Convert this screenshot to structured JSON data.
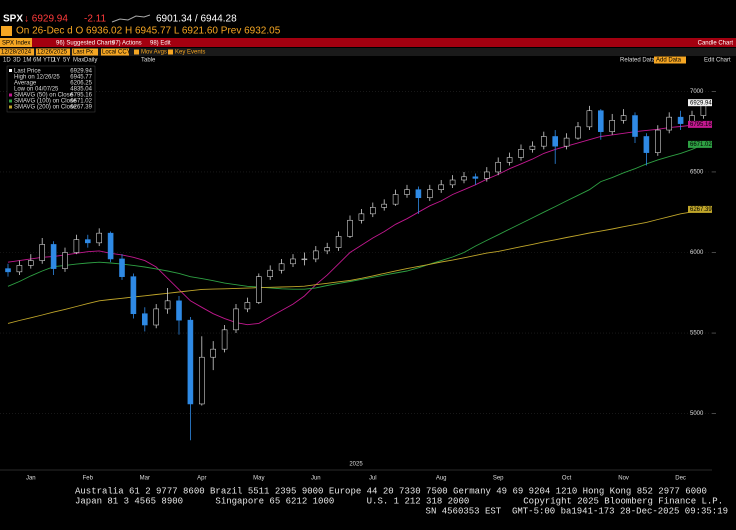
{
  "header": {
    "ticker": "SPX",
    "last": "↓ 6929.94",
    "change": "-2.11",
    "bid_ask": "6901.34 / 6944.28",
    "session": "On 26-Dec d O 6936.02 H 6945.77 L 6921.60 Prev 6932.05"
  },
  "menu": {
    "security": "SPX Index",
    "items": [
      "96) Suggested Charts",
      "97) Actions",
      "98) Edit"
    ],
    "view": "Candle Chart"
  },
  "toolbar": {
    "start": "12/28/2024",
    "end": "12/26/2025",
    "field": "Last Px",
    "currency": "Local CCY",
    "studies": [
      "Mov Avgs",
      "Key Events"
    ],
    "ranges": [
      "1D",
      "3D",
      "1M",
      "6M",
      "YTD",
      "1Y",
      "5Y",
      "Max"
    ],
    "frequency": "Daily",
    "table": "Table",
    "related": "Related Data",
    "add": "Add Data",
    "edit": "Edit Chart"
  },
  "chart_data": {
    "type": "candlestick",
    "xlabel": "2025",
    "categories": [
      null,
      null,
      "Jan",
      null,
      null,
      null,
      null,
      "Feb",
      null,
      null,
      null,
      null,
      "Mar",
      null,
      null,
      null,
      null,
      "Apr",
      null,
      null,
      null,
      null,
      "May",
      null,
      null,
      null,
      null,
      "Jun",
      null,
      null,
      null,
      null,
      "Jul",
      null,
      null,
      null,
      null,
      null,
      "Aug",
      null,
      null,
      null,
      null,
      "Sep",
      null,
      null,
      null,
      null,
      null,
      "Oct",
      null,
      null,
      null,
      null,
      "Nov",
      null,
      null,
      null,
      null,
      "Dec",
      null,
      null
    ],
    "open": [
      5900,
      5880,
      5920,
      5950,
      6050,
      5900,
      6000,
      6080,
      6060,
      6120,
      5960,
      5850,
      5620,
      5550,
      5650,
      5700,
      5580,
      5060,
      5350,
      5400,
      5520,
      5650,
      5690,
      5850,
      5890,
      5930,
      5960,
      5960,
      6010,
      6030,
      6100,
      6200,
      6240,
      6280,
      6300,
      6360,
      6390,
      6340,
      6390,
      6420,
      6450,
      6470,
      6460,
      6500,
      6560,
      6590,
      6640,
      6660,
      6720,
      6660,
      6710,
      6780,
      6880,
      6750,
      6820,
      6850,
      6720,
      6620,
      6760,
      6840,
      6800,
      6850
    ],
    "high": [
      5930,
      5950,
      5990,
      6090,
      6070,
      6030,
      6110,
      6110,
      6150,
      6130,
      5990,
      5870,
      5660,
      5680,
      5780,
      5730,
      5600,
      5480,
      5450,
      5550,
      5680,
      5720,
      5870,
      5920,
      5960,
      5990,
      6000,
      6040,
      6060,
      6130,
      6230,
      6270,
      6310,
      6330,
      6390,
      6420,
      6410,
      6420,
      6450,
      6480,
      6500,
      6490,
      6530,
      6590,
      6620,
      6670,
      6690,
      6750,
      6760,
      6740,
      6810,
      6910,
      6890,
      6860,
      6890,
      6870,
      6740,
      6790,
      6870,
      6880,
      6880,
      6945.77
    ],
    "low": [
      5850,
      5860,
      5900,
      5930,
      5860,
      5880,
      5990,
      6030,
      6040,
      5940,
      5830,
      5590,
      5510,
      5530,
      5620,
      5490,
      4835.04,
      5050,
      5270,
      5380,
      5500,
      5630,
      5680,
      5830,
      5870,
      5910,
      5920,
      5940,
      5990,
      6010,
      6090,
      6180,
      6220,
      6260,
      6290,
      6340,
      6240,
      6320,
      6370,
      6400,
      6430,
      6420,
      6440,
      6480,
      6540,
      6570,
      6620,
      6640,
      6550,
      6640,
      6700,
      6760,
      6700,
      6730,
      6800,
      6680,
      6540,
      6600,
      6740,
      6760,
      6780,
      6830
    ],
    "close": [
      5880,
      5920,
      5950,
      6050,
      5900,
      6000,
      6080,
      6060,
      6120,
      5960,
      5850,
      5620,
      5550,
      5650,
      5700,
      5580,
      5060,
      5350,
      5400,
      5520,
      5650,
      5690,
      5850,
      5890,
      5930,
      5960,
      5960,
      6010,
      6030,
      6100,
      6200,
      6240,
      6280,
      6300,
      6360,
      6390,
      6340,
      6390,
      6420,
      6450,
      6470,
      6460,
      6500,
      6560,
      6590,
      6640,
      6660,
      6720,
      6660,
      6710,
      6780,
      6880,
      6750,
      6820,
      6850,
      6720,
      6620,
      6760,
      6840,
      6800,
      6850,
      6929.94
    ],
    "up_color": "#d0d0d0",
    "down_color": "#2f8ae5",
    "series": [
      {
        "name": "SMAVG (50) on Close",
        "color": "#c2188f",
        "values": [
          5940,
          5950,
          5960,
          5970,
          5975,
          5985,
          5995,
          6005,
          6010,
          5995,
          5985,
          5970,
          5950,
          5910,
          5840,
          5770,
          5700,
          5660,
          5620,
          5590,
          5565,
          5552,
          5560,
          5600,
          5640,
          5680,
          5730,
          5800,
          5860,
          5930,
          6000,
          6045,
          6090,
          6130,
          6175,
          6210,
          6250,
          6290,
          6320,
          6360,
          6390,
          6420,
          6455,
          6485,
          6520,
          6550,
          6580,
          6615,
          6640,
          6660,
          6680,
          6700,
          6720,
          6730,
          6740,
          6750,
          6758,
          6765,
          6775,
          6782,
          6790,
          6795.16
        ]
      },
      {
        "name": "SMAVG (100) on Close",
        "color": "#2ea043",
        "values": [
          5790,
          5820,
          5855,
          5885,
          5912,
          5920,
          5928,
          5935,
          5940,
          5935,
          5928,
          5920,
          5910,
          5898,
          5885,
          5870,
          5850,
          5838,
          5825,
          5810,
          5800,
          5790,
          5785,
          5780,
          5775,
          5772,
          5772,
          5780,
          5795,
          5808,
          5820,
          5833,
          5846,
          5860,
          5873,
          5885,
          5905,
          5928,
          5950,
          5972,
          6000,
          6040,
          6075,
          6110,
          6145,
          6180,
          6215,
          6250,
          6285,
          6320,
          6355,
          6390,
          6440,
          6465,
          6495,
          6520,
          6550,
          6575,
          6595,
          6615,
          6640,
          6671.02
        ]
      },
      {
        "name": "SMAVG (200) on Close",
        "color": "#bfa52a",
        "values": [
          5560,
          5578,
          5595,
          5612,
          5630,
          5647,
          5665,
          5683,
          5700,
          5708,
          5716,
          5724,
          5731,
          5739,
          5747,
          5755,
          5763,
          5771,
          5773,
          5775,
          5777,
          5779,
          5782,
          5784,
          5786,
          5788,
          5791,
          5800,
          5809,
          5818,
          5827,
          5840,
          5855,
          5870,
          5886,
          5900,
          5914,
          5927,
          5941,
          5953,
          5967,
          5982,
          5996,
          6007,
          6021,
          6036,
          6050,
          6066,
          6079,
          6093,
          6107,
          6121,
          6133,
          6146,
          6160,
          6173,
          6187,
          6205,
          6222,
          6240,
          6252,
          6267.39
        ]
      }
    ],
    "legend": [
      {
        "label": "Last Price"
      },
      {
        "label": "High on 12/26/25"
      },
      {
        "label": "Average",
        "value": 6206.25
      },
      {
        "label": "Low on 04/07/25"
      }
    ],
    "ylim": [
      4650,
      7170
    ],
    "yticks": [
      5000,
      5500,
      6000,
      6500,
      7000
    ],
    "grid": true
  },
  "footer": [
    "Australia 61 2 9777 8600 Brazil 5511 2395 9000 Europe 44 20 7330 7500 Germany 49 69 9204 1210 Hong Kong 852 2977 6000",
    "Japan 81 3 4565 8900      Singapore 65 6212 1000      U.S. 1 212 318 2000          Copyright 2025 Bloomberg Finance L.P.",
    "SN 4560353 EST  GMT-5:00 ba1941-173 28-Dec-2025 09:35:19"
  ]
}
